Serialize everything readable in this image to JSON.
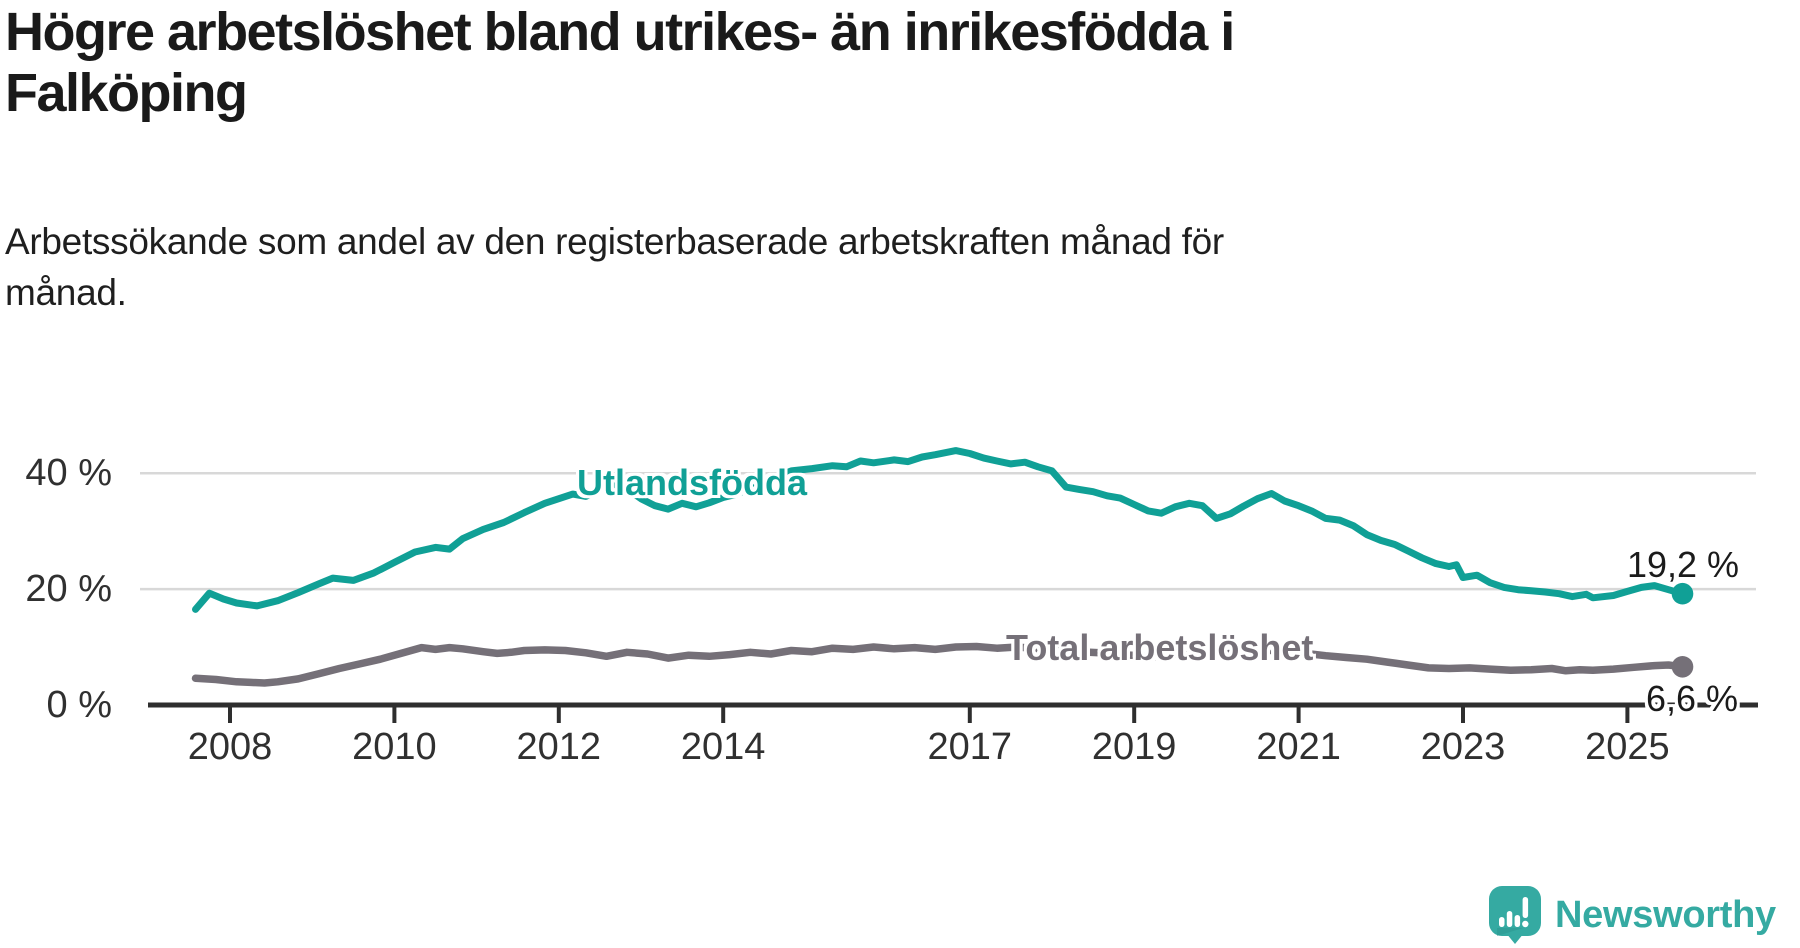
{
  "header": {
    "title_lines": [
      "Högre arbetslöshet bland utrikes- än inrikesfödda i",
      "Falköping"
    ],
    "subtitle_lines": [
      "Arbetssökande som andel av den registerbaserade arbetskraften månad för",
      "månad."
    ]
  },
  "branding": {
    "logo_text": "Newsworthy",
    "logo_color": "#35aaa2"
  },
  "chart_data": {
    "type": "line",
    "title": "Högre arbetslöshet bland utrikes- än inrikesfödda i Falköping",
    "subtitle": "Arbetssökande som andel av den registerbaserade arbetskraften månad för månad.",
    "x_unit": "year",
    "xlim": [
      2007.0,
      2026.6
    ],
    "ylim": [
      0,
      46
    ],
    "grid": "horizontal",
    "legend_position": "inline-labels",
    "x_tick_years": [
      2008,
      2010,
      2012,
      2014,
      2017,
      2019,
      2021,
      2023,
      2025
    ],
    "x_tick_labels": [
      "2008",
      "2010",
      "2012",
      "2014",
      "2017",
      "2019",
      "2021",
      "2023",
      "2025"
    ],
    "y_gridlines": [
      20,
      40
    ],
    "y_axis_labels": [
      {
        "value": 40,
        "label": "40 %"
      },
      {
        "value": 20,
        "label": "20 %"
      },
      {
        "value": 0,
        "label": "0 %"
      }
    ],
    "colors": {
      "grid": "#d8d8d8",
      "axis": "#2e2e2e",
      "teal": "#10a096",
      "gray": "#757078"
    },
    "series": [
      {
        "id": "utlandsfodda",
        "label_text": "Utlandsfödda",
        "end_label": "19,2 %",
        "end_value": 19.2,
        "color": "#10a096",
        "width": 7,
        "points": [
          [
            2007.58,
            16.5
          ],
          [
            2007.75,
            19.3
          ],
          [
            2007.92,
            18.3
          ],
          [
            2008.08,
            17.6
          ],
          [
            2008.33,
            17.1
          ],
          [
            2008.58,
            18.0
          ],
          [
            2008.83,
            19.4
          ],
          [
            2009.08,
            20.9
          ],
          [
            2009.25,
            21.9
          ],
          [
            2009.5,
            21.5
          ],
          [
            2009.75,
            22.8
          ],
          [
            2010.0,
            24.6
          ],
          [
            2010.25,
            26.4
          ],
          [
            2010.5,
            27.2
          ],
          [
            2010.67,
            26.9
          ],
          [
            2010.83,
            28.7
          ],
          [
            2011.08,
            30.3
          ],
          [
            2011.33,
            31.5
          ],
          [
            2011.58,
            33.2
          ],
          [
            2011.83,
            34.8
          ],
          [
            2012.0,
            35.6
          ],
          [
            2012.17,
            36.4
          ],
          [
            2012.33,
            36.0
          ],
          [
            2012.5,
            37.2
          ],
          [
            2012.67,
            37.9
          ],
          [
            2012.83,
            37.3
          ],
          [
            2013.0,
            35.6
          ],
          [
            2013.17,
            34.4
          ],
          [
            2013.33,
            33.8
          ],
          [
            2013.5,
            34.8
          ],
          [
            2013.67,
            34.2
          ],
          [
            2013.83,
            34.9
          ],
          [
            2014.0,
            35.8
          ],
          [
            2014.17,
            36.4
          ],
          [
            2014.33,
            37.5
          ],
          [
            2014.58,
            39.0
          ],
          [
            2014.83,
            40.4
          ],
          [
            2015.08,
            40.8
          ],
          [
            2015.33,
            41.3
          ],
          [
            2015.5,
            41.1
          ],
          [
            2015.67,
            42.1
          ],
          [
            2015.83,
            41.8
          ],
          [
            2016.08,
            42.3
          ],
          [
            2016.25,
            42.0
          ],
          [
            2016.42,
            42.8
          ],
          [
            2016.58,
            43.2
          ],
          [
            2016.83,
            43.9
          ],
          [
            2017.0,
            43.4
          ],
          [
            2017.17,
            42.6
          ],
          [
            2017.33,
            42.1
          ],
          [
            2017.5,
            41.6
          ],
          [
            2017.67,
            41.9
          ],
          [
            2017.83,
            41.1
          ],
          [
            2018.0,
            40.4
          ],
          [
            2018.17,
            37.6
          ],
          [
            2018.33,
            37.2
          ],
          [
            2018.5,
            36.8
          ],
          [
            2018.67,
            36.1
          ],
          [
            2018.83,
            35.7
          ],
          [
            2019.0,
            34.6
          ],
          [
            2019.17,
            33.5
          ],
          [
            2019.33,
            33.1
          ],
          [
            2019.5,
            34.2
          ],
          [
            2019.67,
            34.8
          ],
          [
            2019.83,
            34.4
          ],
          [
            2020.0,
            32.2
          ],
          [
            2020.17,
            33.0
          ],
          [
            2020.33,
            34.3
          ],
          [
            2020.5,
            35.6
          ],
          [
            2020.67,
            36.5
          ],
          [
            2020.83,
            35.2
          ],
          [
            2021.0,
            34.4
          ],
          [
            2021.17,
            33.4
          ],
          [
            2021.33,
            32.2
          ],
          [
            2021.5,
            31.9
          ],
          [
            2021.67,
            30.9
          ],
          [
            2021.83,
            29.4
          ],
          [
            2022.0,
            28.4
          ],
          [
            2022.17,
            27.7
          ],
          [
            2022.33,
            26.6
          ],
          [
            2022.5,
            25.4
          ],
          [
            2022.67,
            24.4
          ],
          [
            2022.83,
            23.9
          ],
          [
            2022.92,
            24.2
          ],
          [
            2023.0,
            22.0
          ],
          [
            2023.17,
            22.4
          ],
          [
            2023.33,
            21.1
          ],
          [
            2023.5,
            20.3
          ],
          [
            2023.67,
            19.9
          ],
          [
            2023.83,
            19.7
          ],
          [
            2024.0,
            19.5
          ],
          [
            2024.17,
            19.2
          ],
          [
            2024.33,
            18.7
          ],
          [
            2024.5,
            19.1
          ],
          [
            2024.58,
            18.5
          ],
          [
            2024.83,
            18.9
          ],
          [
            2025.0,
            19.6
          ],
          [
            2025.17,
            20.3
          ],
          [
            2025.33,
            20.6
          ],
          [
            2025.5,
            19.9
          ],
          [
            2025.67,
            19.2
          ]
        ]
      },
      {
        "id": "total",
        "label_text": "Total arbetslöshet",
        "end_label": "6,6 %",
        "end_value": 6.6,
        "color": "#757078",
        "width": 7.5,
        "points": [
          [
            2007.58,
            4.6
          ],
          [
            2007.83,
            4.4
          ],
          [
            2008.08,
            4.0
          ],
          [
            2008.25,
            3.9
          ],
          [
            2008.42,
            3.8
          ],
          [
            2008.58,
            4.0
          ],
          [
            2008.83,
            4.5
          ],
          [
            2009.08,
            5.4
          ],
          [
            2009.33,
            6.3
          ],
          [
            2009.58,
            7.1
          ],
          [
            2009.83,
            7.9
          ],
          [
            2010.08,
            8.9
          ],
          [
            2010.33,
            9.9
          ],
          [
            2010.5,
            9.6
          ],
          [
            2010.67,
            9.9
          ],
          [
            2010.83,
            9.7
          ],
          [
            2011.08,
            9.2
          ],
          [
            2011.25,
            8.9
          ],
          [
            2011.42,
            9.1
          ],
          [
            2011.58,
            9.4
          ],
          [
            2011.83,
            9.5
          ],
          [
            2012.08,
            9.4
          ],
          [
            2012.33,
            9.0
          ],
          [
            2012.58,
            8.4
          ],
          [
            2012.83,
            9.1
          ],
          [
            2013.08,
            8.8
          ],
          [
            2013.33,
            8.1
          ],
          [
            2013.58,
            8.6
          ],
          [
            2013.83,
            8.4
          ],
          [
            2014.08,
            8.7
          ],
          [
            2014.33,
            9.1
          ],
          [
            2014.58,
            8.8
          ],
          [
            2014.83,
            9.4
          ],
          [
            2015.08,
            9.2
          ],
          [
            2015.33,
            9.8
          ],
          [
            2015.58,
            9.6
          ],
          [
            2015.83,
            10.0
          ],
          [
            2016.08,
            9.7
          ],
          [
            2016.33,
            9.9
          ],
          [
            2016.58,
            9.6
          ],
          [
            2016.83,
            10.0
          ],
          [
            2017.08,
            10.1
          ],
          [
            2017.33,
            9.8
          ],
          [
            2017.58,
            10.0
          ],
          [
            2017.83,
            9.7
          ],
          [
            2018.08,
            9.5
          ],
          [
            2018.33,
            9.2
          ],
          [
            2018.58,
            9.0
          ],
          [
            2018.83,
            8.7
          ],
          [
            2019.08,
            8.5
          ],
          [
            2019.33,
            8.3
          ],
          [
            2019.58,
            8.6
          ],
          [
            2019.83,
            8.4
          ],
          [
            2020.08,
            8.7
          ],
          [
            2020.33,
            9.3
          ],
          [
            2020.58,
            9.5
          ],
          [
            2020.83,
            9.2
          ],
          [
            2021.08,
            8.9
          ],
          [
            2021.33,
            8.5
          ],
          [
            2021.58,
            8.2
          ],
          [
            2021.83,
            7.9
          ],
          [
            2022.08,
            7.4
          ],
          [
            2022.33,
            6.9
          ],
          [
            2022.58,
            6.4
          ],
          [
            2022.83,
            6.3
          ],
          [
            2023.08,
            6.4
          ],
          [
            2023.33,
            6.2
          ],
          [
            2023.58,
            6.0
          ],
          [
            2023.83,
            6.1
          ],
          [
            2024.08,
            6.3
          ],
          [
            2024.25,
            5.9
          ],
          [
            2024.42,
            6.1
          ],
          [
            2024.58,
            6.0
          ],
          [
            2024.83,
            6.2
          ],
          [
            2025.08,
            6.5
          ],
          [
            2025.33,
            6.8
          ],
          [
            2025.5,
            6.9
          ],
          [
            2025.67,
            6.6
          ]
        ]
      }
    ]
  }
}
